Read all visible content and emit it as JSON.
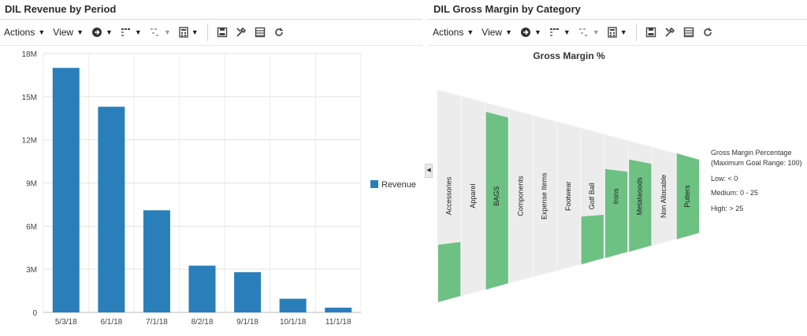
{
  "left_panel": {
    "title": "DIL Revenue by Period",
    "toolbar": {
      "actions_label": "Actions",
      "view_label": "View",
      "icons": [
        "navigate-icon",
        "columns-icon",
        "filter-icon",
        "calculator-icon",
        "save-icon",
        "tools-icon",
        "table-icon",
        "refresh-icon"
      ]
    },
    "chart_data": {
      "type": "bar",
      "categories": [
        "5/3/18",
        "6/1/18",
        "7/1/18",
        "8/2/18",
        "9/1/18",
        "10/1/18",
        "11/1/18"
      ],
      "series": [
        {
          "name": "Revenue",
          "values": [
            17000000,
            14300000,
            7100000,
            3250000,
            2800000,
            950000,
            330000
          ]
        }
      ],
      "y_ticks": [
        0,
        3000000,
        6000000,
        9000000,
        12000000,
        15000000,
        18000000
      ],
      "y_tick_labels": [
        "0",
        "3M",
        "6M",
        "9M",
        "12M",
        "15M",
        "18M"
      ],
      "ylim": [
        0,
        18000000
      ],
      "grid": true,
      "legend_position": "right",
      "bar_color": "#2a7fba"
    }
  },
  "right_panel": {
    "title": "DIL Gross Margin by Category",
    "toolbar": {
      "actions_label": "Actions",
      "view_label": "View"
    },
    "chart_data": {
      "type": "bar",
      "title": "Gross Margin %",
      "categories": [
        "Accessories",
        "Apparel",
        "BAGS",
        "Components",
        "Expense Items",
        "Footwear",
        "Golf Ball",
        "Irons",
        "Metalwoods",
        "Non Allocable",
        "Putters"
      ],
      "series": [
        {
          "name": "Gross Margin %",
          "values": [
            27,
            0,
            95,
            0,
            0,
            0,
            35,
            72,
            83,
            0,
            100
          ]
        }
      ],
      "ylim": [
        0,
        100
      ],
      "legend_position": "right",
      "fill_color": "#6cc183",
      "track_color": "#ececec"
    },
    "legend": {
      "title_line1": "Gross Margin Percentage",
      "title_line2": "(Maximum Goal Range: 100)",
      "low": "Low: < 0",
      "medium": "Medium: 0 - 25",
      "high": "High: > 25"
    }
  }
}
